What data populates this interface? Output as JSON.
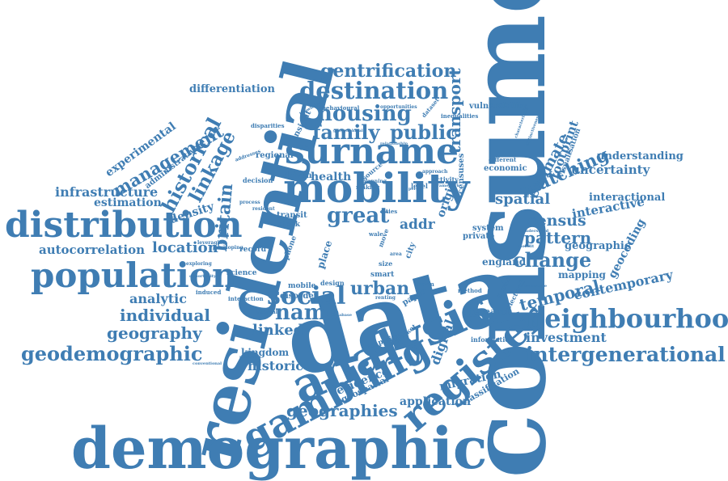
{
  "color": "#3f7db3",
  "words": {
    "consumer": "consumer",
    "residential": "residential",
    "data": "data",
    "demographic": "demographic",
    "analysis": "analysis",
    "register": "register",
    "gambling": "gambling",
    "mobility": "mobility",
    "surname": "surname",
    "distribution": "distribution",
    "population": "population",
    "neighbourhood": "neighbourhood",
    "intergenerational": "intergenerational",
    "geodemographic": "geodemographic",
    "destination": "destination",
    "gentrification": "gentrification",
    "housing": "housing",
    "family": "family",
    "public": "public",
    "transport": "transport",
    "social": "social",
    "name": "name",
    "great": "great",
    "urban": "urban",
    "geographies": "geographies",
    "historical": "historical",
    "linkage": "linkage",
    "management": "management",
    "experimental": "experimental",
    "differentiation": "differentiation",
    "infrastructure": "infrastructure",
    "estimation": "estimation",
    "administrative": "administrative",
    "britain": "britain",
    "density": "density",
    "autocorrelation": "autocorrelation",
    "location": "location",
    "analytic": "analytic",
    "individual": "individual",
    "geography": "geography",
    "linked": "linked",
    "historic": "historic",
    "kingdom": "kingdom",
    "evidence": "evidence",
    "geospatial": "geospatial",
    "migration": "migration",
    "classification": "classification",
    "application": "application",
    "digital": "digital",
    "change": "change",
    "pattern": "pattern",
    "census": "census",
    "matching": "matching",
    "spatial": "spatial",
    "estimate": "estimate",
    "footprint": "footprint",
    "uncertainty": "uncertainty",
    "understanding": "understanding",
    "interactional": "interactional",
    "interactive": "interactive",
    "geographic": "geographic",
    "geocoding": "geocoding",
    "temporal": "temporal",
    "contemporary": "contemporary",
    "investment": "investment",
    "mapping": "mapping",
    "england": "england",
    "research": "research",
    "information": "information",
    "economic": "economic",
    "different": "different",
    "vulnerability": "vulnerability",
    "visualisation": "visualisation",
    "private": "private",
    "system": "system",
    "addr": "addr",
    "origin": "origin",
    "health": "health",
    "driven": "driven",
    "decision": "decision",
    "regional": "regional",
    "insight": "insight",
    "disparities": "disparities",
    "behavioural": "behavioural",
    "censuses": "censuses",
    "dataset": "dataset",
    "transit": "transit",
    "stock": "stock",
    "record": "record",
    "science": "science",
    "interaction": "interaction",
    "induced": "induced",
    "disorder": "disorder",
    "mobile": "mobile",
    "design": "design",
    "smart": "smart",
    "place": "place",
    "phone": "phone",
    "paper": "paper",
    "city": "city",
    "activity": "activity",
    "level": "level",
    "opportunities": "opportunities",
    "inequalities": "inequalities",
    "internal": "internal",
    "empirical": "empirical",
    "market": "market",
    "leveraging": "leveraging",
    "developing": "developing",
    "exploring": "exploring",
    "addresses": "addresses",
    "source": "source",
    "process": "process",
    "resident": "resident",
    "approach": "approach",
    "harm": "harm",
    "impact": "impact",
    "electoral": "electoral",
    "method": "method",
    "renting": "renting",
    "making": "making",
    "cities": "cities",
    "size": "size",
    "area": "area",
    "wale": "wale",
    "move": "move",
    "planning": "planning",
    "knowledge": "knowledge",
    "geographical": "geographical",
    "relationship": "relationship",
    "landscape": "landscape",
    "characterising": "characterising",
    "distinctiveness": "distinctiveness",
    "conventional": "conventional",
    "opportunity": "opportunity",
    "modeling": "modeling",
    "understand": "understand",
    "database": "database",
    "framework": "framework",
    "transport_small": "transport",
    "period": "period",
    "mobilit": "mobilit",
    "geodemographics": "geodemographics"
  }
}
